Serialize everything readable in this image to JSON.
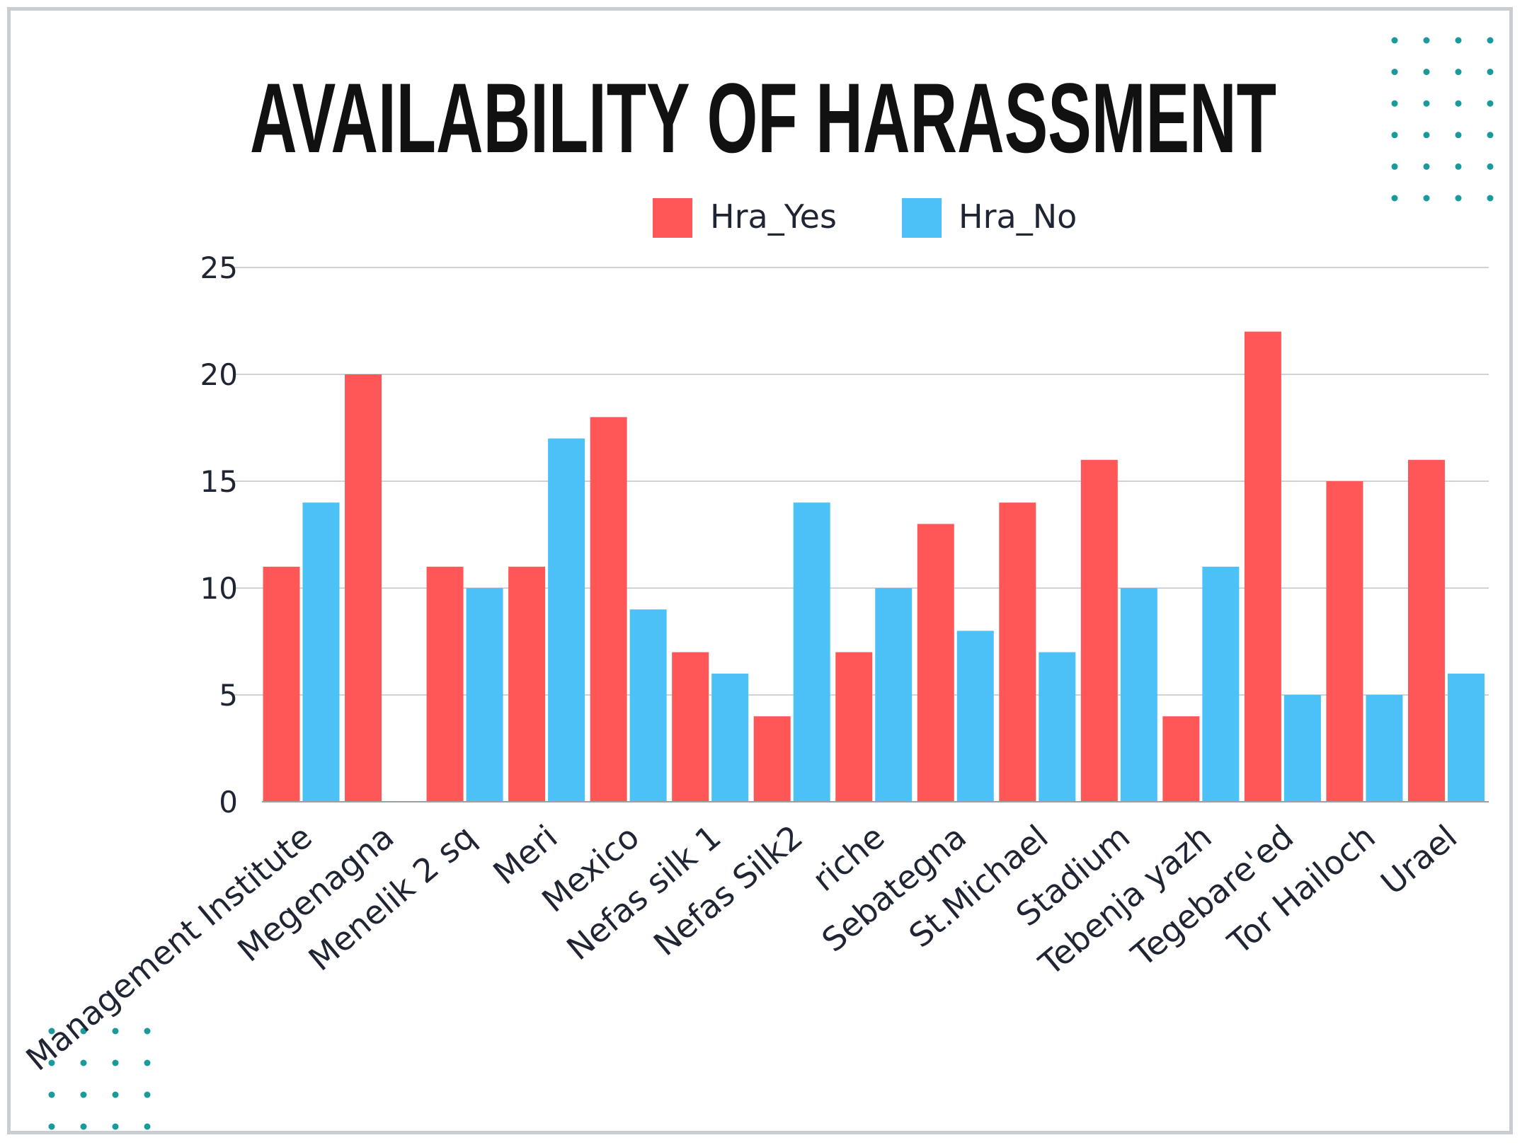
{
  "chart_data": {
    "type": "bar",
    "title": "AVAILABILITY OF HARASSMENT",
    "categories": [
      "Management Institute",
      "Megenagna",
      "Menelik 2 sq",
      "Meri",
      "Mexico",
      "Nefas silk 1",
      "Nefas Silk2",
      "riche",
      "Sebategna",
      "St.Michael",
      "Stadium",
      "Tebenja yazh",
      "Tegebare'ed",
      "Tor Hailoch",
      "Urael"
    ],
    "series": [
      {
        "name": "Hra_Yes",
        "color": "#ff5757",
        "values": [
          11,
          20,
          11,
          11,
          18,
          7,
          4,
          7,
          13,
          14,
          16,
          4,
          22,
          15,
          16
        ]
      },
      {
        "name": "Hra_No",
        "color": "#4bc1f7",
        "values": [
          14,
          0,
          10,
          17,
          9,
          6,
          14,
          10,
          8,
          7,
          10,
          11,
          5,
          5,
          6
        ]
      }
    ],
    "ylim": [
      0,
      25
    ],
    "yticks": [
      0,
      5,
      10,
      15,
      20,
      25
    ],
    "grid": true,
    "legend_position": "top"
  },
  "decoration": {
    "dot_color": "#1a9a9a",
    "grid_color": "#cfd3d8",
    "axis_color": "#9aa0a6"
  }
}
